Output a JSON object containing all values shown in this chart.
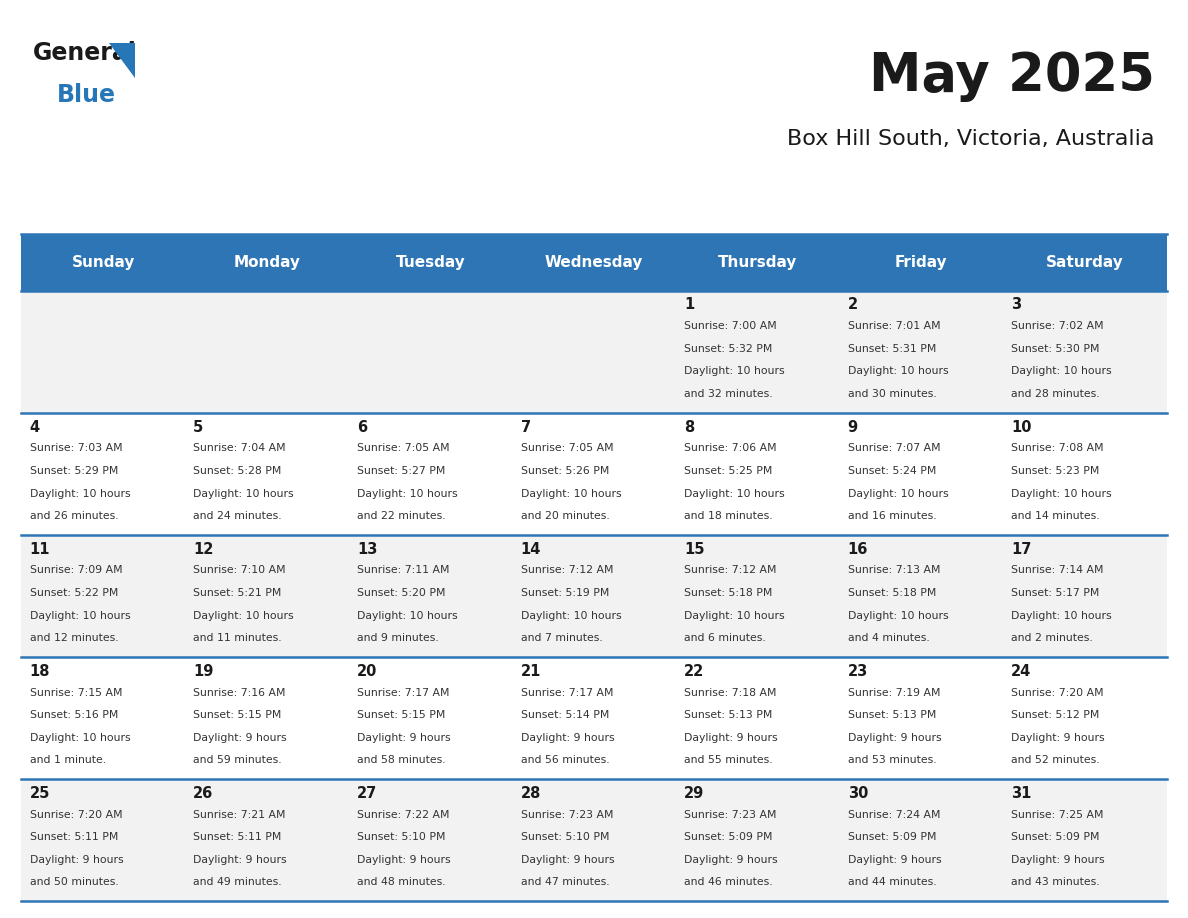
{
  "title": "May 2025",
  "subtitle": "Box Hill South, Victoria, Australia",
  "days_of_week": [
    "Sunday",
    "Monday",
    "Tuesday",
    "Wednesday",
    "Thursday",
    "Friday",
    "Saturday"
  ],
  "header_bg": "#2E75B6",
  "header_text": "#FFFFFF",
  "cell_bg_even": "#F2F2F2",
  "cell_bg_odd": "#FFFFFF",
  "cell_text": "#333333",
  "day_num_color": "#1a1a1a",
  "border_color": "#2E75B6",
  "title_color": "#1a1a1a",
  "subtitle_color": "#1a1a1a",
  "logo_general_color": "#1a1a1a",
  "logo_blue_color": "#2777B8",
  "calendar_data": [
    [
      null,
      null,
      null,
      null,
      {
        "day": 1,
        "sunrise": "7:00 AM",
        "sunset": "5:32 PM",
        "daylight": "10 hours and 32 minutes."
      },
      {
        "day": 2,
        "sunrise": "7:01 AM",
        "sunset": "5:31 PM",
        "daylight": "10 hours and 30 minutes."
      },
      {
        "day": 3,
        "sunrise": "7:02 AM",
        "sunset": "5:30 PM",
        "daylight": "10 hours and 28 minutes."
      }
    ],
    [
      {
        "day": 4,
        "sunrise": "7:03 AM",
        "sunset": "5:29 PM",
        "daylight": "10 hours and 26 minutes."
      },
      {
        "day": 5,
        "sunrise": "7:04 AM",
        "sunset": "5:28 PM",
        "daylight": "10 hours and 24 minutes."
      },
      {
        "day": 6,
        "sunrise": "7:05 AM",
        "sunset": "5:27 PM",
        "daylight": "10 hours and 22 minutes."
      },
      {
        "day": 7,
        "sunrise": "7:05 AM",
        "sunset": "5:26 PM",
        "daylight": "10 hours and 20 minutes."
      },
      {
        "day": 8,
        "sunrise": "7:06 AM",
        "sunset": "5:25 PM",
        "daylight": "10 hours and 18 minutes."
      },
      {
        "day": 9,
        "sunrise": "7:07 AM",
        "sunset": "5:24 PM",
        "daylight": "10 hours and 16 minutes."
      },
      {
        "day": 10,
        "sunrise": "7:08 AM",
        "sunset": "5:23 PM",
        "daylight": "10 hours and 14 minutes."
      }
    ],
    [
      {
        "day": 11,
        "sunrise": "7:09 AM",
        "sunset": "5:22 PM",
        "daylight": "10 hours and 12 minutes."
      },
      {
        "day": 12,
        "sunrise": "7:10 AM",
        "sunset": "5:21 PM",
        "daylight": "10 hours and 11 minutes."
      },
      {
        "day": 13,
        "sunrise": "7:11 AM",
        "sunset": "5:20 PM",
        "daylight": "10 hours and 9 minutes."
      },
      {
        "day": 14,
        "sunrise": "7:12 AM",
        "sunset": "5:19 PM",
        "daylight": "10 hours and 7 minutes."
      },
      {
        "day": 15,
        "sunrise": "7:12 AM",
        "sunset": "5:18 PM",
        "daylight": "10 hours and 6 minutes."
      },
      {
        "day": 16,
        "sunrise": "7:13 AM",
        "sunset": "5:18 PM",
        "daylight": "10 hours and 4 minutes."
      },
      {
        "day": 17,
        "sunrise": "7:14 AM",
        "sunset": "5:17 PM",
        "daylight": "10 hours and 2 minutes."
      }
    ],
    [
      {
        "day": 18,
        "sunrise": "7:15 AM",
        "sunset": "5:16 PM",
        "daylight": "10 hours and 1 minute."
      },
      {
        "day": 19,
        "sunrise": "7:16 AM",
        "sunset": "5:15 PM",
        "daylight": "9 hours and 59 minutes."
      },
      {
        "day": 20,
        "sunrise": "7:17 AM",
        "sunset": "5:15 PM",
        "daylight": "9 hours and 58 minutes."
      },
      {
        "day": 21,
        "sunrise": "7:17 AM",
        "sunset": "5:14 PM",
        "daylight": "9 hours and 56 minutes."
      },
      {
        "day": 22,
        "sunrise": "7:18 AM",
        "sunset": "5:13 PM",
        "daylight": "9 hours and 55 minutes."
      },
      {
        "day": 23,
        "sunrise": "7:19 AM",
        "sunset": "5:13 PM",
        "daylight": "9 hours and 53 minutes."
      },
      {
        "day": 24,
        "sunrise": "7:20 AM",
        "sunset": "5:12 PM",
        "daylight": "9 hours and 52 minutes."
      }
    ],
    [
      {
        "day": 25,
        "sunrise": "7:20 AM",
        "sunset": "5:11 PM",
        "daylight": "9 hours and 50 minutes."
      },
      {
        "day": 26,
        "sunrise": "7:21 AM",
        "sunset": "5:11 PM",
        "daylight": "9 hours and 49 minutes."
      },
      {
        "day": 27,
        "sunrise": "7:22 AM",
        "sunset": "5:10 PM",
        "daylight": "9 hours and 48 minutes."
      },
      {
        "day": 28,
        "sunrise": "7:23 AM",
        "sunset": "5:10 PM",
        "daylight": "9 hours and 47 minutes."
      },
      {
        "day": 29,
        "sunrise": "7:23 AM",
        "sunset": "5:09 PM",
        "daylight": "9 hours and 46 minutes."
      },
      {
        "day": 30,
        "sunrise": "7:24 AM",
        "sunset": "5:09 PM",
        "daylight": "9 hours and 44 minutes."
      },
      {
        "day": 31,
        "sunrise": "7:25 AM",
        "sunset": "5:09 PM",
        "daylight": "9 hours and 43 minutes."
      }
    ]
  ]
}
